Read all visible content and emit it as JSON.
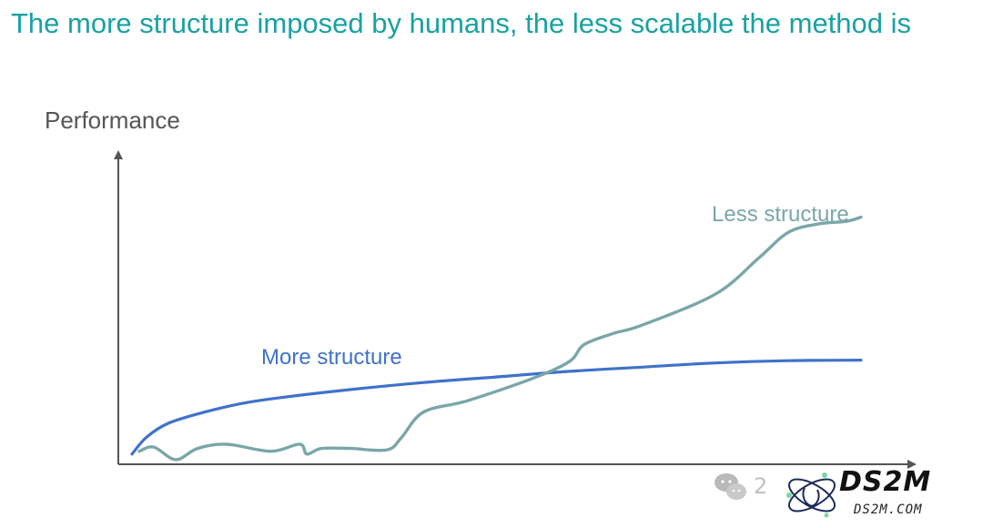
{
  "slide": {
    "title": "The more structure imposed by humans, the less scalable the method is"
  },
  "colors": {
    "title": "#1aa1a1",
    "axis": "#555555",
    "more_structure": "#3f72c9",
    "less_structure": "#7aa6a8"
  },
  "chart_data": {
    "type": "line",
    "ylabel": "Performance",
    "xlabel": "",
    "xlim": [
      0,
      100
    ],
    "ylim": [
      0,
      100
    ],
    "grid": false,
    "axis_ticks": false,
    "series": [
      {
        "name": "More structure",
        "color": "#3f72c9",
        "x": [
          0,
          2,
          5,
          10,
          15,
          20,
          30,
          40,
          50,
          60,
          70,
          80,
          90,
          100
        ],
        "y": [
          3,
          9,
          14,
          18,
          21,
          23,
          26,
          28.5,
          30.5,
          32.5,
          34,
          35.5,
          36.3,
          36.5
        ]
      },
      {
        "name": "Less structure",
        "color": "#7aa6a8",
        "x": [
          1,
          3,
          6,
          9,
          13,
          19,
          23,
          24,
          26,
          30,
          35,
          37,
          40,
          46,
          55,
          60,
          62,
          66,
          70,
          80,
          86,
          90,
          94,
          98,
          100
        ],
        "y": [
          4,
          5.5,
          1,
          5,
          6.5,
          4,
          6.5,
          3,
          5,
          5,
          4.5,
          9,
          18,
          22,
          30,
          36,
          42,
          46,
          49,
          60,
          73,
          82,
          85,
          86,
          87.5
        ]
      }
    ]
  },
  "watermark": {
    "text": "DS2M",
    "subtext": "DS2M.COM"
  }
}
